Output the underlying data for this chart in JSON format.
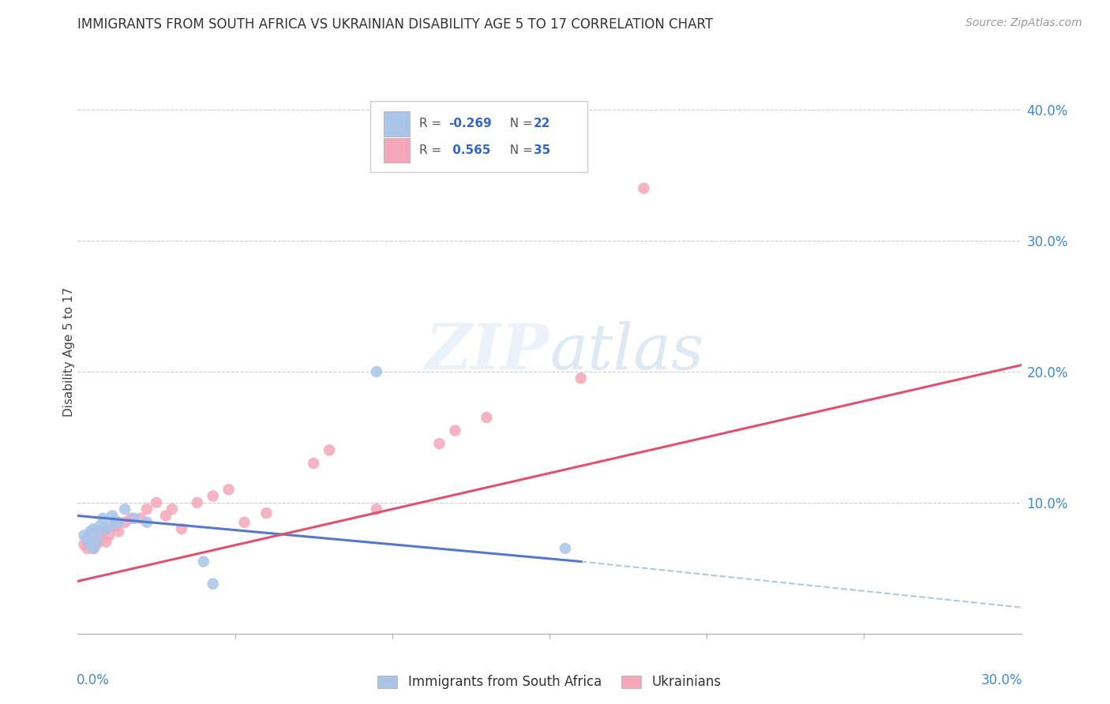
{
  "title": "IMMIGRANTS FROM SOUTH AFRICA VS UKRAINIAN DISABILITY AGE 5 TO 17 CORRELATION CHART",
  "source": "Source: ZipAtlas.com",
  "ylabel": "Disability Age 5 to 17",
  "legend1_label": "Immigrants from South Africa",
  "legend2_label": "Ukrainians",
  "R1": -0.269,
  "N1": 22,
  "R2": 0.565,
  "N2": 35,
  "color_blue": "#aac4e8",
  "color_pink": "#f4a7b9",
  "color_blue_line": "#5577cc",
  "color_pink_line": "#e05070",
  "color_dashed": "#99bbdd",
  "xlim": [
    0.0,
    0.3
  ],
  "ylim": [
    0.0,
    0.43
  ],
  "ytick_values": [
    0.1,
    0.2,
    0.3,
    0.4
  ],
  "ytick_labels": [
    "10.0%",
    "20.0%",
    "30.0%",
    "40.0%"
  ],
  "blue_scatter_x": [
    0.002,
    0.003,
    0.004,
    0.004,
    0.005,
    0.005,
    0.006,
    0.006,
    0.007,
    0.008,
    0.009,
    0.01,
    0.011,
    0.012,
    0.013,
    0.015,
    0.018,
    0.022,
    0.04,
    0.043,
    0.095,
    0.155
  ],
  "blue_scatter_y": [
    0.075,
    0.072,
    0.068,
    0.078,
    0.065,
    0.08,
    0.07,
    0.075,
    0.082,
    0.088,
    0.08,
    0.082,
    0.09,
    0.086,
    0.085,
    0.095,
    0.088,
    0.085,
    0.055,
    0.038,
    0.2,
    0.065
  ],
  "pink_scatter_x": [
    0.002,
    0.003,
    0.003,
    0.004,
    0.004,
    0.005,
    0.005,
    0.006,
    0.007,
    0.008,
    0.009,
    0.01,
    0.012,
    0.013,
    0.015,
    0.017,
    0.02,
    0.022,
    0.025,
    0.028,
    0.03,
    0.033,
    0.038,
    0.043,
    0.048,
    0.053,
    0.06,
    0.075,
    0.08,
    0.095,
    0.115,
    0.12,
    0.13,
    0.16,
    0.18
  ],
  "pink_scatter_y": [
    0.068,
    0.065,
    0.072,
    0.07,
    0.075,
    0.065,
    0.075,
    0.068,
    0.072,
    0.078,
    0.07,
    0.075,
    0.082,
    0.078,
    0.085,
    0.088,
    0.088,
    0.095,
    0.1,
    0.09,
    0.095,
    0.08,
    0.1,
    0.105,
    0.11,
    0.085,
    0.092,
    0.13,
    0.14,
    0.095,
    0.145,
    0.155,
    0.165,
    0.195,
    0.34
  ],
  "blue_line_x_start": 0.0,
  "blue_line_x_solid_end": 0.16,
  "blue_line_x_dashed_end": 0.3,
  "blue_line_y_start": 0.09,
  "blue_line_y_solid_end": 0.055,
  "blue_line_y_dashed_end": 0.02,
  "pink_line_x_start": 0.0,
  "pink_line_x_end": 0.3,
  "pink_line_y_start": 0.04,
  "pink_line_y_end": 0.205
}
